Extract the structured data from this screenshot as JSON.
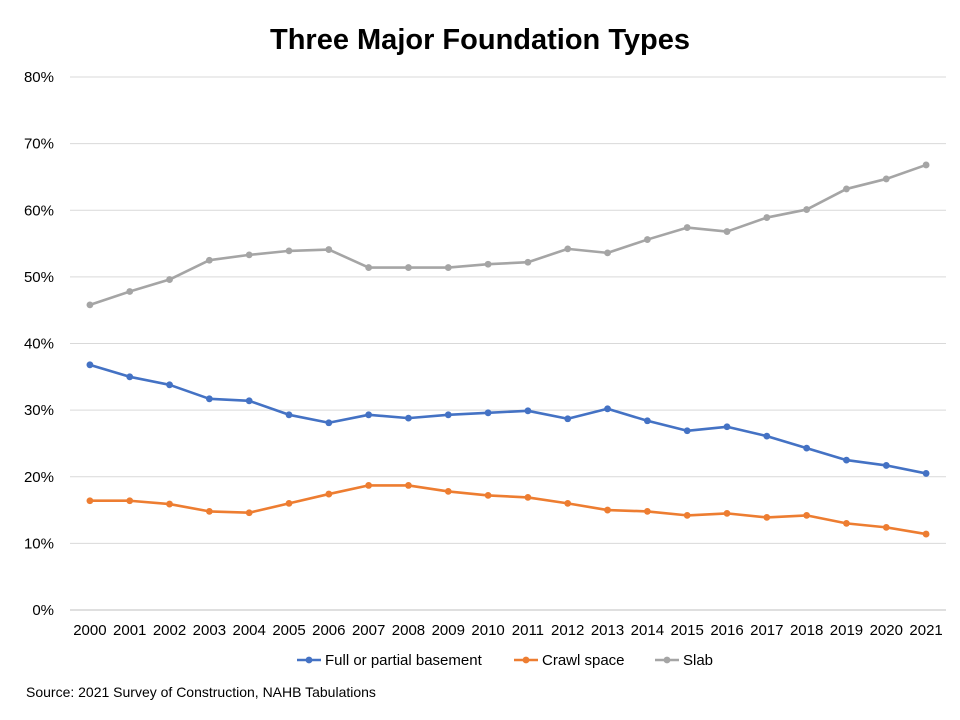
{
  "chart_data": {
    "type": "line",
    "title": "Three Major Foundation Types",
    "xlabel": "",
    "ylabel": "",
    "ylim": [
      0,
      80
    ],
    "ytick_step": 10,
    "y_format": "percent",
    "grid": true,
    "legend_position": "bottom",
    "categories": [
      "2000",
      "2001",
      "2002",
      "2003",
      "2004",
      "2005",
      "2006",
      "2007",
      "2008",
      "2009",
      "2010",
      "2011",
      "2012",
      "2013",
      "2014",
      "2015",
      "2016",
      "2017",
      "2018",
      "2019",
      "2020",
      "2021"
    ],
    "series": [
      {
        "name": "Full or partial basement",
        "color": "#4472C4",
        "values": [
          36.8,
          35.0,
          33.8,
          31.7,
          31.4,
          29.3,
          28.1,
          29.3,
          28.8,
          29.3,
          29.6,
          29.9,
          28.7,
          30.2,
          28.4,
          26.9,
          27.5,
          26.1,
          24.3,
          22.5,
          21.7,
          20.5
        ]
      },
      {
        "name": "Crawl space",
        "color": "#ED7D31",
        "values": [
          16.4,
          16.4,
          15.9,
          14.8,
          14.6,
          16.0,
          17.4,
          18.7,
          18.7,
          17.8,
          17.2,
          16.9,
          16.0,
          15.0,
          14.8,
          14.2,
          14.5,
          13.9,
          14.2,
          13.0,
          12.4,
          11.4
        ]
      },
      {
        "name": "Slab",
        "color": "#A5A5A5",
        "values": [
          45.8,
          47.8,
          49.6,
          52.5,
          53.3,
          53.9,
          54.1,
          51.4,
          51.4,
          51.4,
          51.9,
          52.2,
          54.2,
          53.6,
          55.6,
          57.4,
          56.8,
          58.9,
          60.1,
          63.2,
          64.7,
          66.8
        ]
      }
    ],
    "source": "Source: 2021 Survey of Construction, NAHB Tabulations"
  }
}
